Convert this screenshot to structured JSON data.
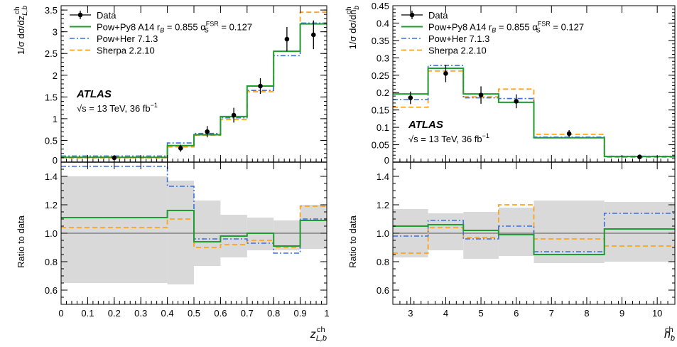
{
  "figure": {
    "label_atlas": "ATLAS",
    "label_energy": "√s = 13 TeV, 36 fb",
    "label_energy_sup": "−1"
  },
  "legend": {
    "data": "Data",
    "powpy8": "Pow+Py8 A14 r",
    "powpy8_sub": "B",
    "powpy8_rest": " = 0.855 α",
    "powpy8_sup": "FSR",
    "powpy8_sub2": "S",
    "powpy8_end": " = 0.127",
    "powher": "Pow+Her 7.1.3",
    "sherpa": "Sherpa 2.2.10"
  },
  "colors": {
    "data": "#000000",
    "powpy8": "#1f9c2e",
    "powher": "#3a6fe0",
    "sherpa": "#ffa31a",
    "uncertainty_band": "#d9d9d9",
    "reference_line": "#555555"
  },
  "chart_data": [
    {
      "type": "line",
      "panel": "left",
      "edges": [
        0,
        0.4,
        0.5,
        0.6,
        0.7,
        0.8,
        0.9,
        1.0
      ],
      "xlabel": "z",
      "xlabel_sup": "ch",
      "xlabel_sub": "L,b",
      "ylabel_top": "1/σ dσ/dz",
      "ylabel_top_sup": "ch",
      "ylabel_top_sub": "L,b",
      "ylabel_ratio": "Ratio to data",
      "xlim": [
        0,
        1
      ],
      "ylim_top": [
        0,
        3.6
      ],
      "ylim_ratio": [
        0.5,
        1.5
      ],
      "xticks": [
        "0",
        "0.1",
        "0.2",
        "0.3",
        "0.4",
        "0.5",
        "0.6",
        "0.7",
        "0.8",
        "0.9",
        "1"
      ],
      "yticks_top": [
        "0",
        "0.5",
        "1",
        "1.5",
        "2",
        "2.5",
        "3",
        "3.5"
      ],
      "yticks_ratio": [
        "0.6",
        "0.8",
        "1.0",
        "1.2",
        "1.4"
      ],
      "data_points": {
        "x": [
          0.2,
          0.45,
          0.55,
          0.65,
          0.75,
          0.85,
          0.95
        ],
        "y": [
          0.1,
          0.32,
          0.7,
          1.08,
          1.75,
          2.83,
          2.93
        ],
        "err": [
          0.04,
          0.08,
          0.13,
          0.17,
          0.18,
          0.28,
          0.33
        ]
      },
      "series": [
        {
          "name": "Pow+Py8 A14",
          "values": [
            0.11,
            0.38,
            0.63,
            1.05,
            1.75,
            2.55,
            3.18
          ]
        },
        {
          "name": "Pow+Her 7.1.3",
          "values": [
            0.14,
            0.44,
            0.66,
            1.02,
            1.65,
            2.45,
            3.2
          ]
        },
        {
          "name": "Sherpa 2.2.10",
          "values": [
            0.1,
            0.35,
            0.62,
            0.98,
            1.62,
            2.55,
            3.45
          ]
        }
      ],
      "ratio_series": [
        {
          "name": "Pow+Py8 A14",
          "values": [
            1.11,
            1.16,
            0.94,
            0.98,
            1.0,
            0.91,
            1.09
          ]
        },
        {
          "name": "Pow+Her 7.1.3",
          "values": [
            1.47,
            1.33,
            0.96,
            0.96,
            0.93,
            0.86,
            1.1
          ]
        },
        {
          "name": "Sherpa 2.2.10",
          "values": [
            1.04,
            1.1,
            0.9,
            0.92,
            0.95,
            0.9,
            1.19
          ]
        }
      ],
      "band": {
        "lo": [
          0.65,
          0.64,
          0.77,
          0.83,
          0.88,
          0.88,
          0.89
        ],
        "hi": [
          1.4,
          1.37,
          1.23,
          1.13,
          1.11,
          1.09,
          1.2
        ]
      }
    },
    {
      "type": "line",
      "panel": "right",
      "edges": [
        2.5,
        3.5,
        4.5,
        5.5,
        6.5,
        8.5,
        10.5
      ],
      "xlabel": "n",
      "xlabel_sup": "ch",
      "xlabel_sub": "b",
      "ylabel_top": "1/σ dσ/dn",
      "ylabel_top_sup": "ch",
      "ylabel_top_sub": "b",
      "ylabel_ratio": "Ratio to data",
      "xlim": [
        2.5,
        10.5
      ],
      "ylim_top": [
        0,
        0.45
      ],
      "ylim_ratio": [
        0.5,
        1.5
      ],
      "xticks": [
        "3",
        "4",
        "5",
        "6",
        "7",
        "8",
        "9",
        "10"
      ],
      "yticks_top": [
        "0",
        "0.05",
        "0.1",
        "0.15",
        "0.2",
        "0.25",
        "0.3",
        "0.35",
        "0.4",
        "0.45"
      ],
      "yticks_ratio": [
        "0.6",
        "0.8",
        "1.0",
        "1.2",
        "1.4"
      ],
      "data_points": {
        "x": [
          3,
          4,
          5,
          6,
          7.5,
          9.5
        ],
        "y": [
          0.185,
          0.255,
          0.193,
          0.175,
          0.082,
          0.015
        ],
        "err": [
          0.018,
          0.025,
          0.025,
          0.02,
          0.01,
          0.003
        ]
      },
      "series": [
        {
          "name": "Pow+Py8 A14",
          "values": [
            0.196,
            0.27,
            0.196,
            0.172,
            0.07,
            0.016
          ]
        },
        {
          "name": "Pow+Her 7.1.3",
          "values": [
            0.18,
            0.278,
            0.185,
            0.183,
            0.072,
            0.017
          ]
        },
        {
          "name": "Sherpa 2.2.10",
          "values": [
            0.158,
            0.262,
            0.188,
            0.21,
            0.08,
            0.014
          ]
        }
      ],
      "ratio_series": [
        {
          "name": "Pow+Py8 A14",
          "values": [
            1.05,
            1.06,
            1.02,
            0.99,
            0.85,
            1.03
          ]
        },
        {
          "name": "Pow+Her 7.1.3",
          "values": [
            0.98,
            1.09,
            0.96,
            1.05,
            0.87,
            1.14
          ]
        },
        {
          "name": "Sherpa 2.2.10",
          "values": [
            0.86,
            1.04,
            0.97,
            1.2,
            0.96,
            0.91
          ]
        }
      ],
      "band": {
        "lo": [
          0.83,
          0.88,
          0.82,
          0.84,
          0.79,
          0.8
        ],
        "hi": [
          1.17,
          1.14,
          1.15,
          1.18,
          1.23,
          1.22
        ]
      }
    }
  ]
}
